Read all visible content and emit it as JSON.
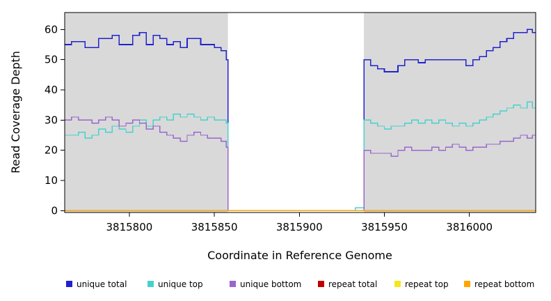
{
  "chart_data": {
    "type": "line",
    "step": true,
    "title": "",
    "xlabel": "Coordinate in Reference Genome",
    "ylabel": "Read Coverage Depth",
    "xlim": [
      3815762,
      3816039
    ],
    "ylim": [
      0,
      60
    ],
    "x_ticks": [
      3815800,
      3815850,
      3815900,
      3815950,
      3816000
    ],
    "y_ticks": [
      0,
      10,
      20,
      30,
      40,
      50,
      60
    ],
    "plot_background": "#D9D9D9",
    "highlight_region": {
      "x0": 3815858,
      "x1": 3815938,
      "color": "#FFFFFF"
    },
    "series": [
      {
        "name": "unique total",
        "color": "#2222CC",
        "points": [
          [
            3815762,
            55
          ],
          [
            3815766,
            56
          ],
          [
            3815770,
            56
          ],
          [
            3815774,
            54
          ],
          [
            3815778,
            54
          ],
          [
            3815782,
            57
          ],
          [
            3815786,
            57
          ],
          [
            3815790,
            58
          ],
          [
            3815794,
            55
          ],
          [
            3815798,
            55
          ],
          [
            3815802,
            58
          ],
          [
            3815806,
            59
          ],
          [
            3815810,
            55
          ],
          [
            3815814,
            58
          ],
          [
            3815818,
            57
          ],
          [
            3815822,
            55
          ],
          [
            3815826,
            56
          ],
          [
            3815830,
            54
          ],
          [
            3815834,
            57
          ],
          [
            3815838,
            57
          ],
          [
            3815842,
            55
          ],
          [
            3815846,
            55
          ],
          [
            3815850,
            54
          ],
          [
            3815854,
            53
          ],
          [
            3815857,
            50
          ],
          [
            3815858,
            0
          ],
          [
            3815933,
            1
          ],
          [
            3815938,
            50
          ],
          [
            3815942,
            48
          ],
          [
            3815946,
            47
          ],
          [
            3815950,
            46
          ],
          [
            3815954,
            46
          ],
          [
            3815958,
            48
          ],
          [
            3815962,
            50
          ],
          [
            3815966,
            50
          ],
          [
            3815970,
            49
          ],
          [
            3815974,
            50
          ],
          [
            3815978,
            50
          ],
          [
            3815982,
            50
          ],
          [
            3815986,
            50
          ],
          [
            3815990,
            50
          ],
          [
            3815994,
            50
          ],
          [
            3815998,
            48
          ],
          [
            3816002,
            50
          ],
          [
            3816006,
            51
          ],
          [
            3816010,
            53
          ],
          [
            3816014,
            54
          ],
          [
            3816018,
            56
          ],
          [
            3816022,
            57
          ],
          [
            3816026,
            59
          ],
          [
            3816030,
            59
          ],
          [
            3816034,
            60
          ],
          [
            3816037,
            59
          ]
        ]
      },
      {
        "name": "unique top",
        "color": "#48D1CC",
        "points": [
          [
            3815762,
            25
          ],
          [
            3815766,
            25
          ],
          [
            3815770,
            26
          ],
          [
            3815774,
            24
          ],
          [
            3815778,
            25
          ],
          [
            3815782,
            27
          ],
          [
            3815786,
            26
          ],
          [
            3815790,
            28
          ],
          [
            3815794,
            27
          ],
          [
            3815798,
            26
          ],
          [
            3815802,
            28
          ],
          [
            3815806,
            30
          ],
          [
            3815810,
            28
          ],
          [
            3815814,
            30
          ],
          [
            3815818,
            31
          ],
          [
            3815822,
            30
          ],
          [
            3815826,
            32
          ],
          [
            3815830,
            31
          ],
          [
            3815834,
            32
          ],
          [
            3815838,
            31
          ],
          [
            3815842,
            30
          ],
          [
            3815846,
            31
          ],
          [
            3815850,
            30
          ],
          [
            3815854,
            30
          ],
          [
            3815857,
            29
          ],
          [
            3815858,
            0
          ],
          [
            3815933,
            1
          ],
          [
            3815938,
            30
          ],
          [
            3815942,
            29
          ],
          [
            3815946,
            28
          ],
          [
            3815950,
            27
          ],
          [
            3815954,
            28
          ],
          [
            3815958,
            28
          ],
          [
            3815962,
            29
          ],
          [
            3815966,
            30
          ],
          [
            3815970,
            29
          ],
          [
            3815974,
            30
          ],
          [
            3815978,
            29
          ],
          [
            3815982,
            30
          ],
          [
            3815986,
            29
          ],
          [
            3815990,
            28
          ],
          [
            3815994,
            29
          ],
          [
            3815998,
            28
          ],
          [
            3816002,
            29
          ],
          [
            3816006,
            30
          ],
          [
            3816010,
            31
          ],
          [
            3816014,
            32
          ],
          [
            3816018,
            33
          ],
          [
            3816022,
            34
          ],
          [
            3816026,
            35
          ],
          [
            3816030,
            34
          ],
          [
            3816034,
            36
          ],
          [
            3816037,
            34
          ]
        ]
      },
      {
        "name": "unique bottom",
        "color": "#9966CC",
        "points": [
          [
            3815762,
            30
          ],
          [
            3815766,
            31
          ],
          [
            3815770,
            30
          ],
          [
            3815774,
            30
          ],
          [
            3815778,
            29
          ],
          [
            3815782,
            30
          ],
          [
            3815786,
            31
          ],
          [
            3815790,
            30
          ],
          [
            3815794,
            28
          ],
          [
            3815798,
            29
          ],
          [
            3815802,
            30
          ],
          [
            3815806,
            29
          ],
          [
            3815810,
            27
          ],
          [
            3815814,
            28
          ],
          [
            3815818,
            26
          ],
          [
            3815822,
            25
          ],
          [
            3815826,
            24
          ],
          [
            3815830,
            23
          ],
          [
            3815834,
            25
          ],
          [
            3815838,
            26
          ],
          [
            3815842,
            25
          ],
          [
            3815846,
            24
          ],
          [
            3815850,
            24
          ],
          [
            3815854,
            23
          ],
          [
            3815857,
            21
          ],
          [
            3815858,
            0
          ],
          [
            3815933,
            0
          ],
          [
            3815938,
            20
          ],
          [
            3815942,
            19
          ],
          [
            3815946,
            19
          ],
          [
            3815950,
            19
          ],
          [
            3815954,
            18
          ],
          [
            3815958,
            20
          ],
          [
            3815962,
            21
          ],
          [
            3815966,
            20
          ],
          [
            3815970,
            20
          ],
          [
            3815974,
            20
          ],
          [
            3815978,
            21
          ],
          [
            3815982,
            20
          ],
          [
            3815986,
            21
          ],
          [
            3815990,
            22
          ],
          [
            3815994,
            21
          ],
          [
            3815998,
            20
          ],
          [
            3816002,
            21
          ],
          [
            3816006,
            21
          ],
          [
            3816010,
            22
          ],
          [
            3816014,
            22
          ],
          [
            3816018,
            23
          ],
          [
            3816022,
            23
          ],
          [
            3816026,
            24
          ],
          [
            3816030,
            25
          ],
          [
            3816034,
            24
          ],
          [
            3816037,
            25
          ]
        ]
      },
      {
        "name": "repeat total",
        "color": "#C00000",
        "points": [
          [
            3815762,
            0
          ],
          [
            3816039,
            0
          ]
        ]
      },
      {
        "name": "repeat top",
        "color": "#F5E61E",
        "points": [
          [
            3815762,
            0
          ],
          [
            3816039,
            0
          ]
        ]
      },
      {
        "name": "repeat bottom",
        "color": "#FFA500",
        "points": [
          [
            3815762,
            0
          ],
          [
            3816039,
            0
          ]
        ]
      }
    ],
    "legend": {
      "position": "bottom",
      "items": [
        {
          "label": "unique total",
          "color": "#2222CC"
        },
        {
          "label": "unique top",
          "color": "#48D1CC"
        },
        {
          "label": "unique bottom",
          "color": "#9966CC"
        },
        {
          "label": "repeat total",
          "color": "#C00000"
        },
        {
          "label": "repeat top",
          "color": "#F5E61E"
        },
        {
          "label": "repeat bottom",
          "color": "#FFA500"
        }
      ]
    }
  }
}
